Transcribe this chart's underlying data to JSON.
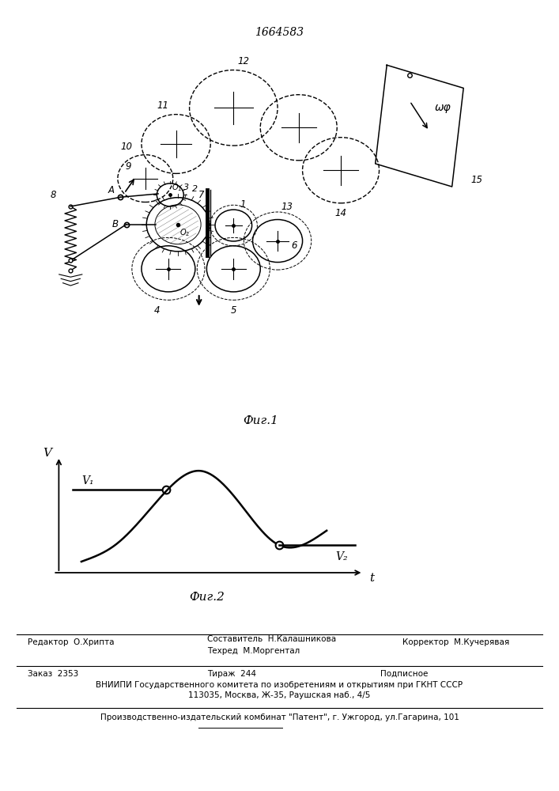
{
  "patent_number": "1664583",
  "fig1_caption": "Фиг.1",
  "fig2_caption": "Фиг.2",
  "v_label": "V",
  "t_label": "t",
  "v1_label": "V₁",
  "v2_label": "V₂",
  "omega_label": "ωφ",
  "label_8": "8",
  "label_9": "9",
  "label_10": "10",
  "label_11": "11",
  "label_12": "12",
  "label_13": "13",
  "label_14": "14",
  "label_15": "15",
  "label_A": "A",
  "label_B": "B",
  "label_O1": "O₁",
  "label_O2": "O₂",
  "label_1": "1",
  "label_2": "2",
  "label_3": "3",
  "label_4": "4",
  "label_5": "5",
  "label_6": "6",
  "label_7": "7",
  "footer_line1_left": "Редактор  О.Хрипта",
  "footer_sestavitel": "Составитель  Н.Калашникова",
  "footer_tekhred": "Техред  М.Моргентал",
  "footer_korrektor": "Корректор  М.Кучерявая",
  "footer_zakaz": "Заказ  2353",
  "footer_tirazh": "Тираж  244",
  "footer_podpisnoe": "Подписное",
  "footer_vnipi": "ВНИИПИ Государственного комитета по изобретениям и открытиям при ГКНТ СССР",
  "footer_address": "113035, Москва, Ж-35, Раушская наб., 4/5",
  "footer_patent": "Производственно-издательский комбинат \"Патент\", г. Ужгород, ул.Гагарина, 101"
}
